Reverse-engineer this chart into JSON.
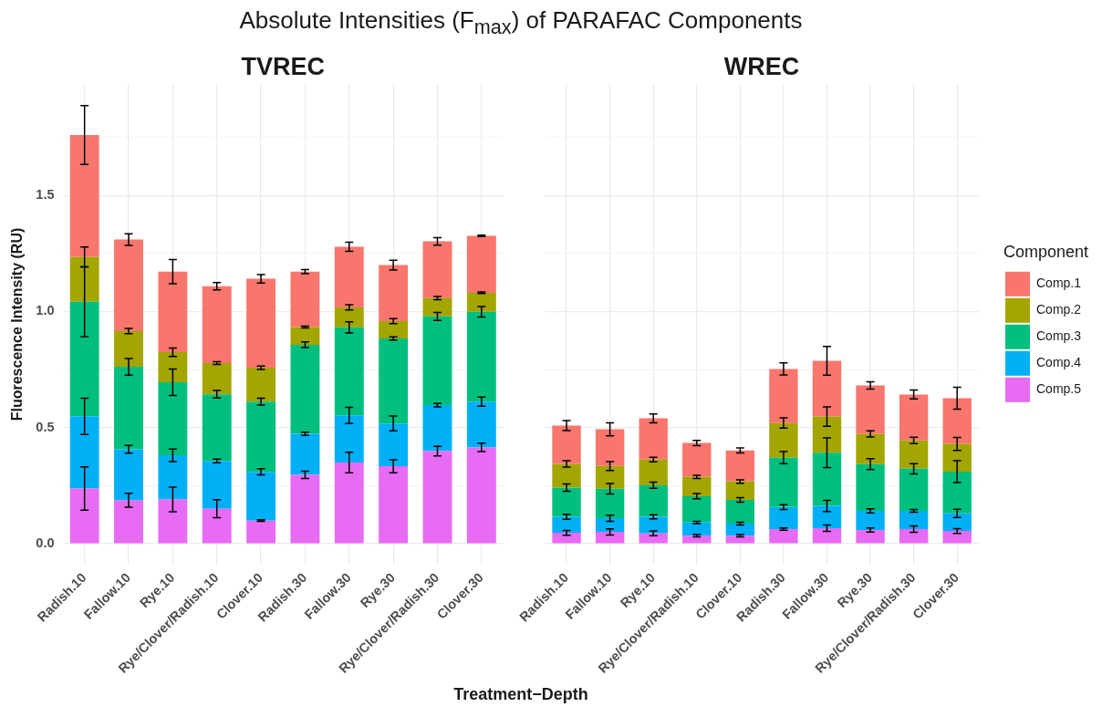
{
  "chart_data": [
    {
      "type": "bar",
      "title": "Absolute Intensities (F$_{max}$) of PARAFAC Components",
      "subtitle": "TVREC",
      "xlabel": "Treatment−Depth",
      "ylabel": "Fluorescence Intensity (RU)",
      "categories": [
        "Radish.10",
        "Fallow.10",
        "Rye.10",
        "Rye/Clover/Radish.10",
        "Clover.10",
        "Radish.30",
        "Fallow.30",
        "Rye.30",
        "Rye/Clover/Radish.30",
        "Clover.30"
      ],
      "series": [
        {
          "color": "#e76bf3",
          "values": [
            0.238,
            0.187,
            0.191,
            0.151,
            0.1,
            0.297,
            0.35,
            0.334,
            0.399,
            0.415
          ],
          "errors": [
            0.093,
            0.03,
            0.053,
            0.039,
            0.003,
            0.016,
            0.044,
            0.028,
            0.021,
            0.018
          ]
        },
        {
          "color": "#00b0f6",
          "values": [
            0.311,
            0.22,
            0.19,
            0.206,
            0.21,
            0.177,
            0.203,
            0.184,
            0.198,
            0.197
          ],
          "errors": [
            0.078,
            0.017,
            0.027,
            0.008,
            0.013,
            0.007,
            0.035,
            0.032,
            0.007,
            0.02
          ]
        },
        {
          "color": "#00bf7d",
          "values": [
            0.493,
            0.355,
            0.315,
            0.287,
            0.302,
            0.383,
            0.379,
            0.366,
            0.382,
            0.387
          ],
          "errors": [
            0.15,
            0.036,
            0.057,
            0.016,
            0.015,
            0.012,
            0.024,
            0.007,
            0.017,
            0.023
          ]
        },
        {
          "color": "#a3a500",
          "values": [
            0.193,
            0.154,
            0.129,
            0.134,
            0.146,
            0.076,
            0.086,
            0.075,
            0.079,
            0.082
          ],
          "errors": [
            0.043,
            0.011,
            0.018,
            0.006,
            0.007,
            0.004,
            0.011,
            0.011,
            0.007,
            0.003
          ]
        },
        {
          "color": "#f8766d",
          "values": [
            0.525,
            0.394,
            0.347,
            0.331,
            0.383,
            0.239,
            0.261,
            0.241,
            0.244,
            0.245
          ],
          "errors": [
            0.127,
            0.025,
            0.052,
            0.016,
            0.018,
            0.009,
            0.02,
            0.021,
            0.016,
            0.003
          ]
        }
      ],
      "stacked": true,
      "ylim": [
        -0.09,
        1.98
      ],
      "yticks": [
        {
          "value": 0,
          "label": "0.0"
        },
        {
          "value": 0.25,
          "label": null
        },
        {
          "value": 0.5,
          "label": "0.5"
        },
        {
          "value": 0.75,
          "label": null
        },
        {
          "value": 1,
          "label": "1.0"
        },
        {
          "value": 1.25,
          "label": null
        },
        {
          "value": 1.5,
          "label": "1.5"
        },
        {
          "value": 1.75,
          "label": null
        }
      ],
      "grid": true
    },
    {
      "type": "bar",
      "subtitle": "WREC",
      "categories": [
        "Radish.10",
        "Fallow.10",
        "Rye.10",
        "Rye/Clover/Radish.10",
        "Clover.10",
        "Radish.30",
        "Fallow.30",
        "Rye.30",
        "Rye/Clover/Radish.30",
        "Clover.30"
      ],
      "series": [
        {
          "name": "Comp.5",
          "color": "#e76bf3",
          "values": [
            0.047,
            0.051,
            0.045,
            0.035,
            0.035,
            0.063,
            0.067,
            0.059,
            0.063,
            0.055
          ],
          "errors": [
            0.01,
            0.013,
            0.01,
            0.005,
            0.005,
            0.005,
            0.014,
            0.009,
            0.014,
            0.01
          ]
        },
        {
          "name": "Comp.4",
          "color": "#00b0f6",
          "values": [
            0.069,
            0.059,
            0.071,
            0.057,
            0.052,
            0.095,
            0.096,
            0.083,
            0.079,
            0.076
          ],
          "errors": [
            0.011,
            0.013,
            0.009,
            0.005,
            0.006,
            0.01,
            0.024,
            0.009,
            0.006,
            0.018
          ]
        },
        {
          "name": "Comp.3",
          "color": "#00bf7d",
          "values": [
            0.126,
            0.127,
            0.136,
            0.113,
            0.102,
            0.213,
            0.229,
            0.201,
            0.181,
            0.18
          ],
          "errors": [
            0.016,
            0.023,
            0.013,
            0.011,
            0.01,
            0.026,
            0.064,
            0.024,
            0.022,
            0.047
          ]
        },
        {
          "name": "Comp.2",
          "color": "#a3a500",
          "values": [
            0.102,
            0.098,
            0.111,
            0.083,
            0.079,
            0.149,
            0.156,
            0.13,
            0.122,
            0.119
          ],
          "errors": [
            0.014,
            0.019,
            0.01,
            0.007,
            0.007,
            0.022,
            0.042,
            0.013,
            0.014,
            0.028
          ]
        },
        {
          "name": "Comp.1",
          "color": "#f8766d",
          "values": [
            0.165,
            0.158,
            0.177,
            0.146,
            0.134,
            0.233,
            0.24,
            0.209,
            0.198,
            0.197
          ],
          "errors": [
            0.022,
            0.028,
            0.019,
            0.011,
            0.011,
            0.026,
            0.062,
            0.016,
            0.019,
            0.047
          ]
        }
      ],
      "stacked": true,
      "ylim": [
        -0.09,
        1.98
      ],
      "yticks": [
        0,
        {
          "value": 0.25,
          "label": null
        },
        0.5,
        {
          "value": 0.75,
          "label": null
        },
        1,
        {
          "value": 1.25,
          "label": null
        },
        1.5,
        {
          "value": 1.75,
          "label": null
        }
      ],
      "grid": true,
      "tick_labels": "x",
      "legend": "right",
      "legend_title": "Component"
    }
  ]
}
